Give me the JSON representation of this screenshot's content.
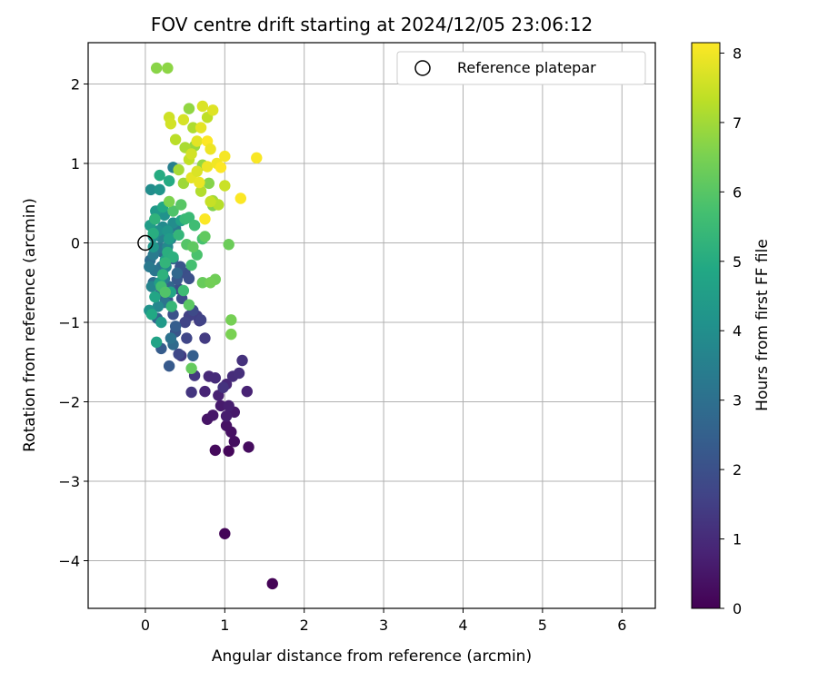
{
  "chart_data": {
    "type": "scatter",
    "title": "FOV centre drift starting at 2024/12/05 23:06:12",
    "xlabel": "Angular distance from reference (arcmin)",
    "ylabel": "Rotation from reference (arcmin)",
    "xlim": [
      -0.72,
      6.42
    ],
    "ylim": [
      -4.6,
      2.52
    ],
    "xticks": [
      0,
      1,
      2,
      3,
      4,
      5,
      6
    ],
    "yticks": [
      -4,
      -3,
      -2,
      -1,
      0,
      1,
      2
    ],
    "grid": true,
    "legend": {
      "placement": "top-right",
      "entries": [
        "Reference platepar"
      ]
    },
    "reference_point": {
      "x": 0,
      "y": 0,
      "label": "Reference platepar",
      "marker": "open-circle"
    },
    "colorbar": {
      "label": "Hours from first FF file",
      "min": 0,
      "max": 8.15,
      "ticks": [
        0,
        1,
        2,
        3,
        4,
        5,
        6,
        7,
        8
      ],
      "colormap": "viridis"
    },
    "points": [
      [
        1.6,
        -4.29,
        0.05
      ],
      [
        1.0,
        -3.66,
        0.1
      ],
      [
        1.05,
        -2.62,
        0.15
      ],
      [
        0.88,
        -2.61,
        0.2
      ],
      [
        1.3,
        -2.57,
        0.25
      ],
      [
        1.12,
        -2.5,
        0.3
      ],
      [
        1.08,
        -2.38,
        0.35
      ],
      [
        1.02,
        -2.3,
        0.4
      ],
      [
        0.78,
        -2.22,
        0.45
      ],
      [
        0.85,
        -2.17,
        0.5
      ],
      [
        1.12,
        -2.13,
        0.55
      ],
      [
        0.95,
        -2.05,
        0.6
      ],
      [
        1.02,
        -2.18,
        0.65
      ],
      [
        1.05,
        -2.05,
        0.7
      ],
      [
        0.92,
        -1.92,
        0.75
      ],
      [
        1.28,
        -1.87,
        0.8
      ],
      [
        0.75,
        -1.87,
        0.85
      ],
      [
        1.02,
        -1.78,
        0.9
      ],
      [
        0.8,
        -1.68,
        0.95
      ],
      [
        0.88,
        -1.7,
        1.0
      ],
      [
        1.1,
        -1.68,
        1.05
      ],
      [
        1.18,
        -1.64,
        1.1
      ],
      [
        1.22,
        -1.48,
        1.15
      ],
      [
        0.98,
        -1.82,
        1.2
      ],
      [
        0.58,
        -1.88,
        1.25
      ],
      [
        0.62,
        -1.67,
        1.3
      ],
      [
        0.45,
        -1.42,
        1.35
      ],
      [
        0.75,
        -1.2,
        1.4
      ],
      [
        0.68,
        -0.98,
        1.45
      ],
      [
        0.65,
        -0.92,
        1.5
      ],
      [
        0.55,
        -0.92,
        1.55
      ],
      [
        0.7,
        -0.97,
        1.6
      ],
      [
        0.5,
        -1.0,
        1.65
      ],
      [
        0.52,
        -1.2,
        1.7
      ],
      [
        0.42,
        -1.4,
        1.75
      ],
      [
        0.6,
        -0.85,
        1.8
      ],
      [
        0.46,
        -0.7,
        1.85
      ],
      [
        0.42,
        -0.58,
        1.9
      ],
      [
        0.5,
        -0.38,
        1.95
      ],
      [
        0.55,
        -0.45,
        2.0
      ],
      [
        0.35,
        -0.9,
        2.05
      ],
      [
        0.38,
        -1.12,
        2.1
      ],
      [
        0.44,
        -0.3,
        2.15
      ],
      [
        0.28,
        -0.72,
        2.2
      ],
      [
        0.4,
        -0.46,
        2.25
      ],
      [
        0.3,
        -1.55,
        2.3
      ],
      [
        0.2,
        -1.33,
        2.35
      ],
      [
        0.38,
        -1.05,
        2.4
      ],
      [
        0.6,
        -1.42,
        2.45
      ],
      [
        0.35,
        -0.2,
        2.5
      ],
      [
        0.22,
        -0.35,
        2.55
      ],
      [
        0.15,
        -0.95,
        2.6
      ],
      [
        0.3,
        -0.55,
        2.65
      ],
      [
        0.18,
        -0.65,
        2.7
      ],
      [
        0.4,
        -0.38,
        2.75
      ],
      [
        0.35,
        -1.28,
        2.8
      ],
      [
        0.22,
        -0.12,
        2.85
      ],
      [
        0.1,
        -0.5,
        2.9
      ],
      [
        0.06,
        -0.22,
        2.95
      ],
      [
        0.2,
        -0.3,
        3.0
      ],
      [
        0.32,
        -1.2,
        3.05
      ],
      [
        0.25,
        -0.75,
        3.1
      ],
      [
        0.12,
        -0.35,
        3.15
      ],
      [
        0.18,
        -0.06,
        3.2
      ],
      [
        0.38,
        0.18,
        3.25
      ],
      [
        0.05,
        -0.3,
        3.3
      ],
      [
        0.1,
        -0.15,
        3.35
      ],
      [
        0.24,
        -0.45,
        3.4
      ],
      [
        0.32,
        0.05,
        3.45
      ],
      [
        0.35,
        0.95,
        3.5
      ],
      [
        0.2,
        0.07,
        3.55
      ],
      [
        0.12,
        0.3,
        3.6
      ],
      [
        0.08,
        -0.55,
        3.65
      ],
      [
        0.26,
        -0.3,
        3.7
      ],
      [
        0.16,
        -0.8,
        3.75
      ],
      [
        0.28,
        -0.05,
        3.8
      ],
      [
        0.22,
        0.2,
        3.85
      ],
      [
        0.35,
        0.25,
        3.9
      ],
      [
        0.07,
        0.67,
        3.95
      ],
      [
        0.1,
        0.08,
        4.0
      ],
      [
        0.16,
        0.15,
        4.05
      ],
      [
        0.24,
        0.35,
        4.1
      ],
      [
        0.05,
        -0.85,
        4.15
      ],
      [
        0.18,
        0.67,
        4.2
      ],
      [
        0.28,
        0.15,
        4.25
      ],
      [
        0.1,
        -0.05,
        4.3
      ],
      [
        0.13,
        0.4,
        4.35
      ],
      [
        0.2,
        -1.0,
        4.4
      ],
      [
        0.3,
        0.05,
        4.45
      ],
      [
        0.06,
        0.22,
        4.5
      ],
      [
        0.18,
        -0.5,
        4.55
      ],
      [
        0.25,
        -0.22,
        4.6
      ],
      [
        0.45,
        0.28,
        4.65
      ],
      [
        0.14,
        -1.25,
        4.7
      ],
      [
        0.32,
        -0.62,
        4.75
      ],
      [
        0.12,
        -0.68,
        4.8
      ],
      [
        0.22,
        0.45,
        4.85
      ],
      [
        0.08,
        -0.9,
        4.9
      ],
      [
        0.3,
        0.78,
        4.95
      ],
      [
        0.18,
        0.85,
        5.0
      ],
      [
        0.1,
        0.12,
        5.05
      ],
      [
        0.28,
        -0.12,
        5.1
      ],
      [
        0.35,
        -0.18,
        5.15
      ],
      [
        0.22,
        -0.4,
        5.2
      ],
      [
        0.12,
        0.3,
        5.25
      ],
      [
        0.25,
        -0.25,
        5.3
      ],
      [
        0.42,
        0.1,
        5.35
      ],
      [
        0.33,
        -0.8,
        5.4
      ],
      [
        0.5,
        0.3,
        5.45
      ],
      [
        0.55,
        0.32,
        5.5
      ],
      [
        0.48,
        -0.6,
        5.55
      ],
      [
        0.62,
        0.22,
        5.6
      ],
      [
        0.2,
        -0.55,
        5.65
      ],
      [
        0.58,
        -0.28,
        5.7
      ],
      [
        0.72,
        0.05,
        5.75
      ],
      [
        0.65,
        -0.15,
        5.8
      ],
      [
        0.35,
        0.4,
        5.85
      ],
      [
        0.25,
        -0.62,
        5.9
      ],
      [
        0.52,
        -0.02,
        5.95
      ],
      [
        0.45,
        0.48,
        6.0
      ],
      [
        0.55,
        -0.78,
        6.05
      ],
      [
        0.6,
        -0.05,
        6.1
      ],
      [
        0.75,
        0.08,
        6.15
      ],
      [
        0.58,
        -1.58,
        6.2
      ],
      [
        0.72,
        -0.5,
        6.25
      ],
      [
        1.05,
        -0.02,
        6.3
      ],
      [
        0.88,
        -0.46,
        6.35
      ],
      [
        0.82,
        -0.5,
        6.4
      ],
      [
        1.08,
        -0.97,
        6.45
      ],
      [
        1.08,
        -1.15,
        6.5
      ],
      [
        0.3,
        0.52,
        6.55
      ],
      [
        0.85,
        0.47,
        6.6
      ],
      [
        0.8,
        0.75,
        6.65
      ],
      [
        0.14,
        2.2,
        6.7
      ],
      [
        0.28,
        2.2,
        6.75
      ],
      [
        0.55,
        1.69,
        6.8
      ],
      [
        0.72,
        0.98,
        6.85
      ],
      [
        0.62,
        1.22,
        6.9
      ],
      [
        0.48,
        0.75,
        6.95
      ],
      [
        0.85,
        0.53,
        7.0
      ],
      [
        0.42,
        0.92,
        7.05
      ],
      [
        0.5,
        1.2,
        7.1
      ],
      [
        0.6,
        1.45,
        7.15
      ],
      [
        0.7,
        0.65,
        7.2
      ],
      [
        0.92,
        0.48,
        7.25
      ],
      [
        0.38,
        1.3,
        7.3
      ],
      [
        0.78,
        1.58,
        7.35
      ],
      [
        0.55,
        1.05,
        7.4
      ],
      [
        0.82,
        0.52,
        7.45
      ],
      [
        1.0,
        0.72,
        7.5
      ],
      [
        0.3,
        1.58,
        7.55
      ],
      [
        0.32,
        1.5,
        7.6
      ],
      [
        0.48,
        1.55,
        7.65
      ],
      [
        0.72,
        1.72,
        7.7
      ],
      [
        0.85,
        1.67,
        7.75
      ],
      [
        0.65,
        1.28,
        7.8
      ],
      [
        0.58,
        0.82,
        7.85
      ],
      [
        0.68,
        0.76,
        7.9
      ],
      [
        0.78,
        0.96,
        7.95
      ],
      [
        0.9,
        1.0,
        8.0
      ],
      [
        1.0,
        1.09,
        8.05
      ],
      [
        1.4,
        1.07,
        8.1
      ],
      [
        1.2,
        0.56,
        8.12
      ],
      [
        0.75,
        0.3,
        8.13
      ],
      [
        0.78,
        1.28,
        8.14
      ],
      [
        0.95,
        0.95,
        8.15
      ],
      [
        0.82,
        1.18,
        7.95
      ],
      [
        0.58,
        1.12,
        7.6
      ],
      [
        0.7,
        1.45,
        7.85
      ],
      [
        0.65,
        0.9,
        7.7
      ]
    ]
  }
}
